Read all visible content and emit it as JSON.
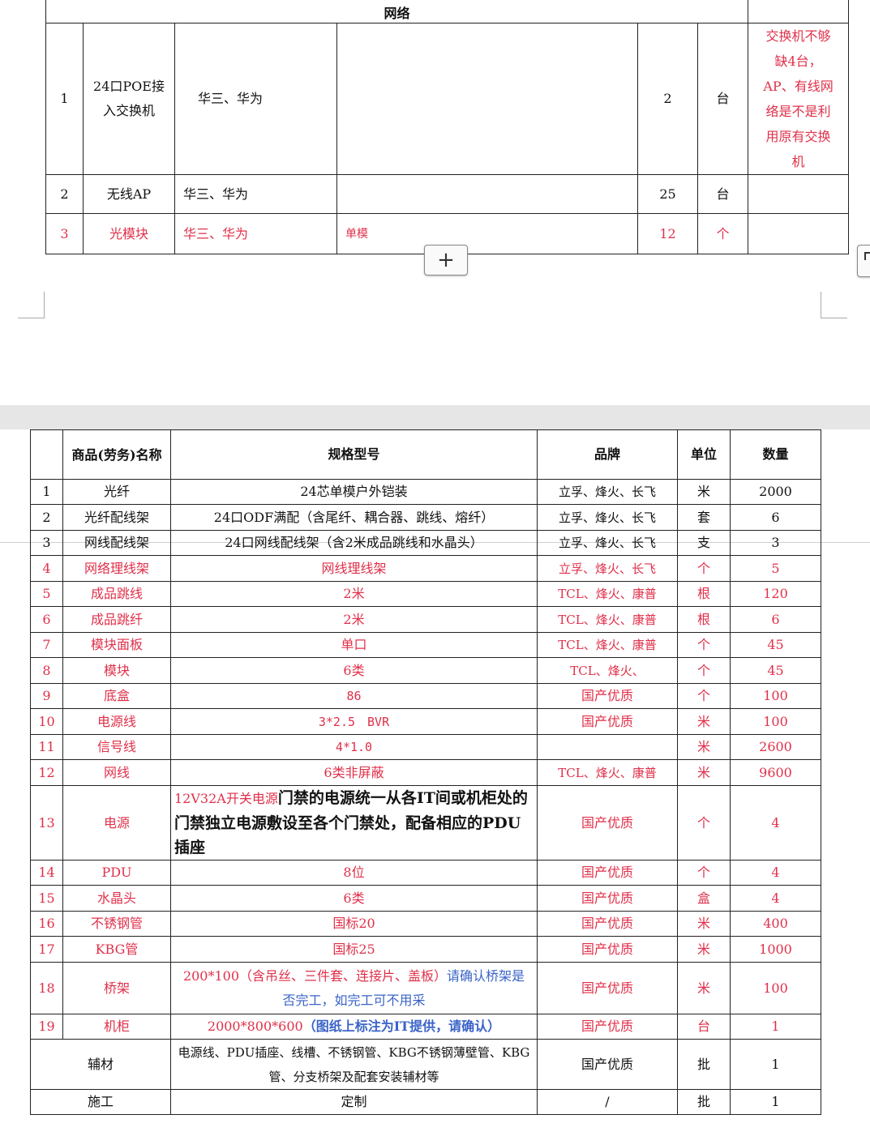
{
  "table1": {
    "header": "网络",
    "rows": [
      {
        "no": "1",
        "name": "24口POE接入交换机",
        "brand": "华三、华为",
        "spec": "",
        "qty": "2",
        "unit": "台",
        "note": "交换机不够缺4台，AP、有线网络是不是利用原有交换机"
      },
      {
        "no": "2",
        "name": "无线AP",
        "brand": "华三、华为",
        "spec": "",
        "qty": "25",
        "unit": "台",
        "note": ""
      },
      {
        "no": "3",
        "name": "光模块",
        "brand": "华三、华为",
        "spec": "单模",
        "qty": "12",
        "unit": "个",
        "note": ""
      }
    ]
  },
  "add_button": {
    "label": "+"
  },
  "table2": {
    "headers": {
      "no": "",
      "name": "商品(劳务)名称",
      "spec": "规格型号",
      "brand": "品牌",
      "unit": "单位",
      "qty": "数量"
    },
    "rows": [
      {
        "no": "1",
        "name": "光纤",
        "spec": "24芯单模户外铠装",
        "brand": "立孚、烽火、长飞",
        "unit": "米",
        "qty": "2000"
      },
      {
        "no": "2",
        "name": "光纤配线架",
        "spec": "24口ODF满配（含尾纤、耦合器、跳线、熔纤）",
        "brand": "立孚、烽火、长飞",
        "unit": "套",
        "qty": "6"
      },
      {
        "no": "3",
        "name": "网线配线架",
        "spec": "24口网线配线架（含2米成品跳线和水晶头）",
        "brand": "立孚、烽火、长飞",
        "unit": "支",
        "qty": "3"
      },
      {
        "no": "4",
        "name": "网络理线架",
        "spec": "网线理线架",
        "brand": "立孚、烽火、长飞",
        "unit": "个",
        "qty": "5"
      },
      {
        "no": "5",
        "name": "成品跳线",
        "spec": "2米",
        "brand": "TCL、烽火、康普",
        "unit": "根",
        "qty": "120"
      },
      {
        "no": "6",
        "name": "成品跳纤",
        "spec": "2米",
        "brand": "TCL、烽火、康普",
        "unit": "根",
        "qty": "6"
      },
      {
        "no": "7",
        "name": "模块面板",
        "spec": "单口",
        "brand": "TCL、烽火、康普",
        "unit": "个",
        "qty": "45"
      },
      {
        "no": "8",
        "name": "模块",
        "spec": "6类",
        "brand": "TCL、烽火、",
        "unit": "个",
        "qty": "45"
      },
      {
        "no": "9",
        "name": "底盒",
        "spec": "86",
        "brand": "国产优质",
        "unit": "个",
        "qty": "100"
      },
      {
        "no": "10",
        "name": "电源线",
        "spec": "3*2.5　BVR",
        "brand": "国产优质",
        "unit": "米",
        "qty": "100"
      },
      {
        "no": "11",
        "name": "信号线",
        "spec": "4*1.0",
        "brand": "",
        "unit": "米",
        "qty": "2600"
      },
      {
        "no": "12",
        "name": "网线",
        "spec": "6类非屏蔽",
        "brand": "TCL、烽火、康普",
        "unit": "米",
        "qty": "9600"
      },
      {
        "no": "13",
        "name": "电源",
        "spec": "12V32A开关电源",
        "spec_note": "门禁的电源统一从各IT间或机柜处的门禁独立电源敷设至各个门禁处，配备相应的PDU插座",
        "brand": "国产优质",
        "unit": "个",
        "qty": "4"
      },
      {
        "no": "14",
        "name": "PDU",
        "spec": "8位",
        "brand": "国产优质",
        "unit": "个",
        "qty": "4"
      },
      {
        "no": "15",
        "name": "水晶头",
        "spec": "6类",
        "brand": "国产优质",
        "unit": "盒",
        "qty": "4"
      },
      {
        "no": "16",
        "name": "不锈钢管",
        "spec": "国标20",
        "brand": "国产优质",
        "unit": "米",
        "qty": "400"
      },
      {
        "no": "17",
        "name": "KBG管",
        "spec": "国标25",
        "brand": "国产优质",
        "unit": "米",
        "qty": "1000"
      },
      {
        "no": "18",
        "name": "桥架",
        "spec": "200*100（含吊丝、三件套、连接片、盖板）",
        "spec_note": "请确认桥架是否完工，如完工可不用采",
        "brand": "国产优质",
        "unit": "米",
        "qty": "100"
      },
      {
        "no": "19",
        "name": "机柜",
        "spec": "2000*800*600",
        "spec_note": "（图纸上标注为IT提供，请确认）",
        "brand": "国产优质",
        "unit": "台",
        "qty": "1"
      }
    ],
    "footer": [
      {
        "name": "辅材",
        "spec": "电源线、PDU插座、线槽、不锈钢管、KBG不锈钢薄壁管、KBG管、分支桥架及配套安装辅材等",
        "brand": "国产优质",
        "unit": "批",
        "qty": "1"
      },
      {
        "name": "施工",
        "spec": "定制",
        "brand": "/",
        "unit": "批",
        "qty": "1"
      }
    ]
  }
}
